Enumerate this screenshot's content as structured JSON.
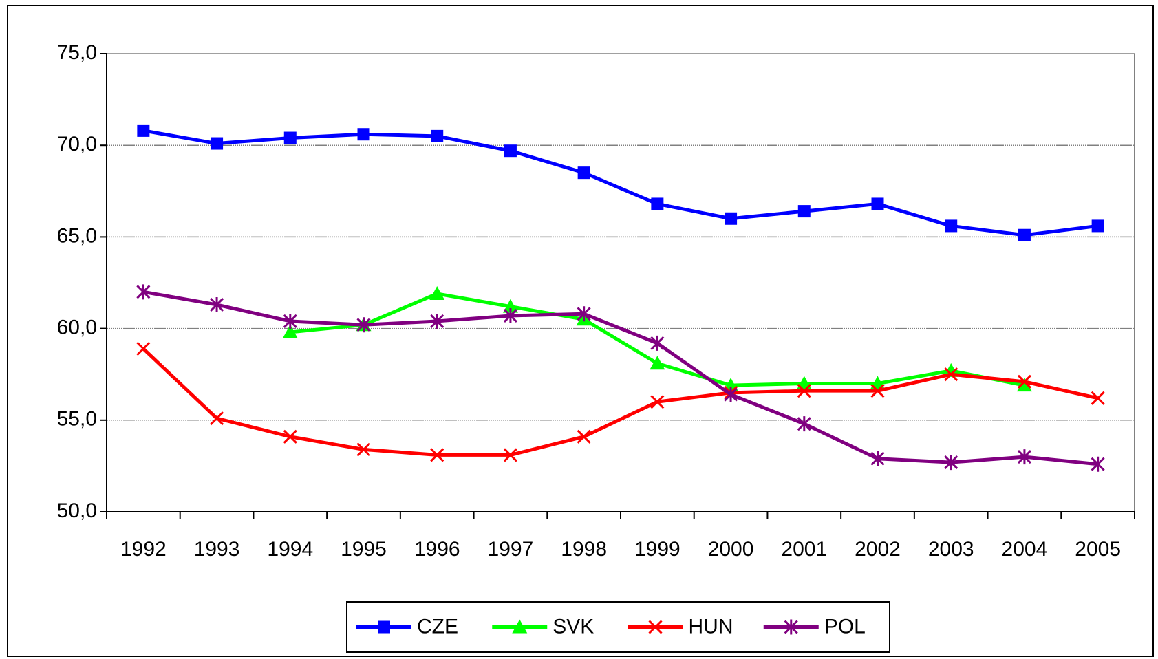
{
  "chart_data": {
    "type": "line",
    "categories": [
      "1992",
      "1993",
      "1994",
      "1995",
      "1996",
      "1997",
      "1998",
      "1999",
      "2000",
      "2001",
      "2002",
      "2003",
      "2004",
      "2005"
    ],
    "series": [
      {
        "name": "CZE",
        "color": "#0000ff",
        "marker": "square",
        "values": [
          70.8,
          70.1,
          70.4,
          70.6,
          70.5,
          69.7,
          68.5,
          66.8,
          66.0,
          66.4,
          66.8,
          65.6,
          65.1,
          65.6
        ]
      },
      {
        "name": "SVK",
        "color": "#00ff00",
        "marker": "triangle",
        "values": [
          null,
          null,
          59.8,
          60.2,
          61.9,
          61.2,
          60.5,
          58.1,
          56.9,
          57.0,
          57.0,
          57.7,
          56.9,
          null
        ]
      },
      {
        "name": "HUN",
        "color": "#ff0000",
        "marker": "x",
        "values": [
          58.9,
          55.1,
          54.1,
          53.4,
          53.1,
          53.1,
          54.1,
          56.0,
          56.5,
          56.6,
          56.6,
          57.5,
          57.1,
          56.2
        ]
      },
      {
        "name": "POL",
        "color": "#800080",
        "marker": "asterisk",
        "values": [
          62.0,
          61.3,
          60.4,
          60.2,
          60.4,
          60.7,
          60.8,
          59.2,
          56.4,
          54.8,
          52.9,
          52.7,
          53.0,
          52.6
        ]
      }
    ],
    "ylim": [
      50,
      75
    ],
    "yticks": [
      {
        "value": 50,
        "label": "50,0"
      },
      {
        "value": 55,
        "label": "55,0"
      },
      {
        "value": 60,
        "label": "60,0"
      },
      {
        "value": 65,
        "label": "65,0"
      },
      {
        "value": 70,
        "label": "70,0"
      },
      {
        "value": 75,
        "label": "75,0"
      }
    ],
    "grid": true,
    "legend": "bottom"
  }
}
